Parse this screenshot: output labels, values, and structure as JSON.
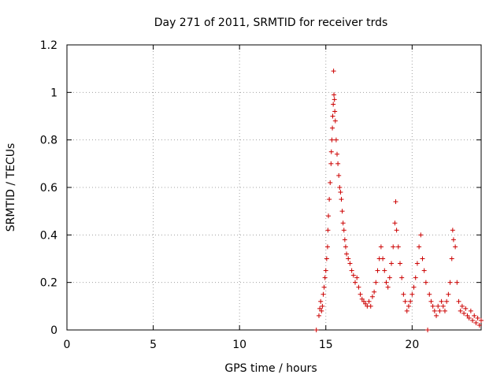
{
  "chart_data": {
    "type": "scatter",
    "title": "Day 271 of 2011, SRMTID for receiver trds",
    "xlabel": "GPS time / hours",
    "ylabel": "SRMTID / TECUs",
    "xlim": [
      0,
      24
    ],
    "ylim": [
      0,
      1.2
    ],
    "x_ticks": [
      0,
      5,
      10,
      15,
      20
    ],
    "x_tick_labels": [
      "0",
      "5",
      "10",
      "15",
      "20"
    ],
    "y_ticks": [
      0,
      0.2,
      0.4,
      0.6,
      0.8,
      1.0,
      1.2
    ],
    "y_tick_labels": [
      "0",
      "0.2",
      "0.4",
      "0.6",
      "0.8",
      "1",
      "1.2"
    ],
    "grid": true,
    "legend": "none",
    "marker": "plus",
    "series": [
      {
        "name": "SRMTID",
        "color": "#cc0000",
        "points": [
          [
            14.45,
            0.0
          ],
          [
            14.6,
            0.06
          ],
          [
            14.65,
            0.09
          ],
          [
            14.7,
            0.12
          ],
          [
            14.75,
            0.08
          ],
          [
            14.8,
            0.1
          ],
          [
            14.85,
            0.15
          ],
          [
            14.9,
            0.18
          ],
          [
            14.95,
            0.22
          ],
          [
            15.0,
            0.25
          ],
          [
            15.05,
            0.3
          ],
          [
            15.1,
            0.35
          ],
          [
            15.12,
            0.42
          ],
          [
            15.15,
            0.48
          ],
          [
            15.2,
            0.55
          ],
          [
            15.25,
            0.62
          ],
          [
            15.3,
            0.7
          ],
          [
            15.32,
            0.75
          ],
          [
            15.35,
            0.8
          ],
          [
            15.38,
            0.85
          ],
          [
            15.4,
            0.9
          ],
          [
            15.43,
            0.95
          ],
          [
            15.45,
            1.09
          ],
          [
            15.47,
            0.99
          ],
          [
            15.5,
            0.97
          ],
          [
            15.52,
            0.92
          ],
          [
            15.55,
            0.88
          ],
          [
            15.6,
            0.8
          ],
          [
            15.65,
            0.74
          ],
          [
            15.7,
            0.7
          ],
          [
            15.75,
            0.65
          ],
          [
            15.8,
            0.6
          ],
          [
            15.85,
            0.58
          ],
          [
            15.9,
            0.55
          ],
          [
            15.95,
            0.5
          ],
          [
            16.0,
            0.45
          ],
          [
            16.05,
            0.42
          ],
          [
            16.1,
            0.38
          ],
          [
            16.15,
            0.35
          ],
          [
            16.2,
            0.32
          ],
          [
            16.3,
            0.3
          ],
          [
            16.4,
            0.28
          ],
          [
            16.5,
            0.25
          ],
          [
            16.6,
            0.23
          ],
          [
            16.7,
            0.2
          ],
          [
            16.8,
            0.22
          ],
          [
            16.9,
            0.18
          ],
          [
            17.0,
            0.15
          ],
          [
            17.1,
            0.13
          ],
          [
            17.2,
            0.12
          ],
          [
            17.3,
            0.11
          ],
          [
            17.4,
            0.1
          ],
          [
            17.5,
            0.12
          ],
          [
            17.6,
            0.1
          ],
          [
            17.7,
            0.14
          ],
          [
            17.8,
            0.16
          ],
          [
            17.9,
            0.2
          ],
          [
            18.0,
            0.25
          ],
          [
            18.1,
            0.3
          ],
          [
            18.2,
            0.35
          ],
          [
            18.3,
            0.3
          ],
          [
            18.4,
            0.25
          ],
          [
            18.5,
            0.2
          ],
          [
            18.6,
            0.18
          ],
          [
            18.7,
            0.22
          ],
          [
            18.8,
            0.28
          ],
          [
            18.9,
            0.35
          ],
          [
            19.0,
            0.45
          ],
          [
            19.05,
            0.54
          ],
          [
            19.1,
            0.42
          ],
          [
            19.2,
            0.35
          ],
          [
            19.3,
            0.28
          ],
          [
            19.4,
            0.22
          ],
          [
            19.5,
            0.15
          ],
          [
            19.6,
            0.12
          ],
          [
            19.7,
            0.08
          ],
          [
            19.8,
            0.1
          ],
          [
            19.9,
            0.12
          ],
          [
            20.0,
            0.15
          ],
          [
            20.1,
            0.18
          ],
          [
            20.2,
            0.22
          ],
          [
            20.3,
            0.28
          ],
          [
            20.4,
            0.35
          ],
          [
            20.5,
            0.4
          ],
          [
            20.6,
            0.3
          ],
          [
            20.7,
            0.25
          ],
          [
            20.8,
            0.2
          ],
          [
            20.9,
            0.0
          ],
          [
            21.0,
            0.15
          ],
          [
            21.1,
            0.12
          ],
          [
            21.2,
            0.1
          ],
          [
            21.3,
            0.08
          ],
          [
            21.4,
            0.06
          ],
          [
            21.5,
            0.1
          ],
          [
            21.6,
            0.08
          ],
          [
            21.7,
            0.12
          ],
          [
            21.8,
            0.1
          ],
          [
            21.9,
            0.08
          ],
          [
            22.0,
            0.12
          ],
          [
            22.1,
            0.15
          ],
          [
            22.2,
            0.2
          ],
          [
            22.3,
            0.3
          ],
          [
            22.35,
            0.42
          ],
          [
            22.4,
            0.38
          ],
          [
            22.5,
            0.35
          ],
          [
            22.6,
            0.2
          ],
          [
            22.7,
            0.12
          ],
          [
            22.8,
            0.08
          ],
          [
            22.9,
            0.1
          ],
          [
            23.0,
            0.07
          ],
          [
            23.1,
            0.09
          ],
          [
            23.2,
            0.06
          ],
          [
            23.3,
            0.05
          ],
          [
            23.4,
            0.08
          ],
          [
            23.5,
            0.04
          ],
          [
            23.6,
            0.06
          ],
          [
            23.7,
            0.03
          ],
          [
            23.8,
            0.05
          ],
          [
            23.9,
            0.02
          ],
          [
            24.0,
            0.04
          ]
        ]
      }
    ]
  }
}
